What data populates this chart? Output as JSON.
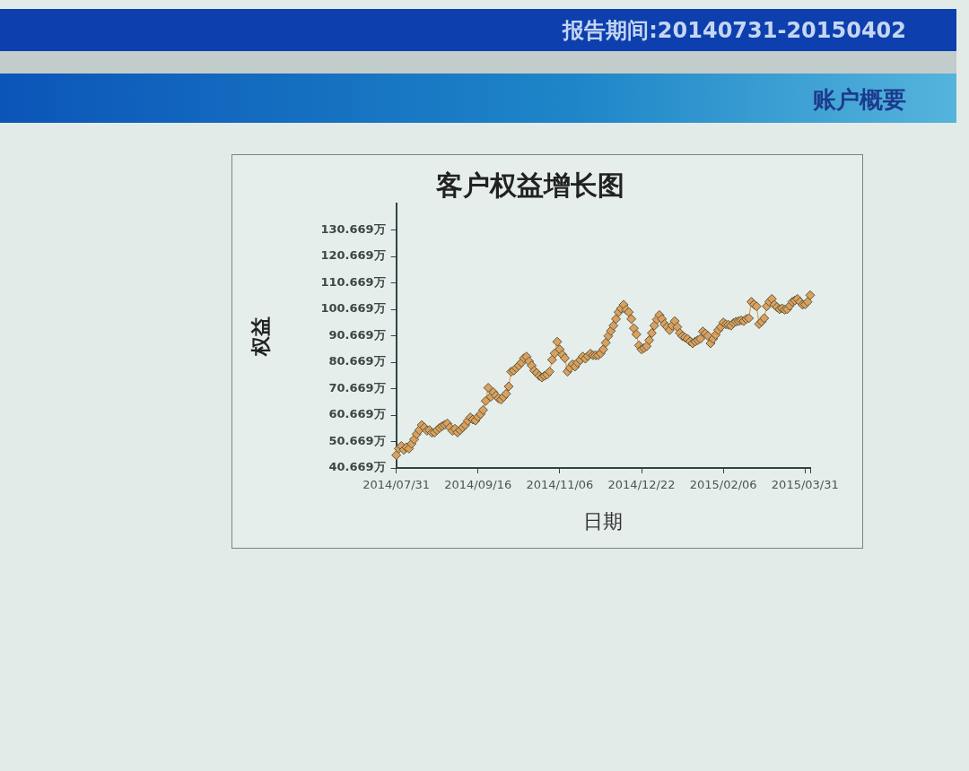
{
  "chart_data": {
    "type": "line",
    "title": "客户权益增长图",
    "xlabel": "日期",
    "ylabel": "权益",
    "annotations": [
      "报告期间:20140731-20150402",
      "账户概要"
    ],
    "categories": [
      "2014/07/31",
      null,
      null,
      null,
      null,
      null,
      null,
      null,
      null,
      null,
      null,
      null,
      null,
      null,
      null,
      null,
      null,
      null,
      null,
      null,
      null,
      null,
      null,
      null,
      null,
      null,
      null,
      null,
      null,
      null,
      null,
      null,
      "2014/09/16",
      null,
      null,
      null,
      null,
      null,
      null,
      null,
      null,
      null,
      null,
      null,
      null,
      null,
      null,
      null,
      null,
      null,
      null,
      null,
      null,
      null,
      null,
      null,
      null,
      null,
      null,
      null,
      null,
      null,
      null,
      null,
      "2014/11/06",
      null,
      null,
      null,
      null,
      null,
      null,
      null,
      null,
      null,
      null,
      null,
      null,
      null,
      null,
      null,
      null,
      null,
      null,
      null,
      null,
      null,
      null,
      null,
      null,
      null,
      null,
      null,
      null,
      null,
      null,
      null,
      "2014/12/22",
      null,
      null,
      null,
      null,
      null,
      null,
      null,
      null,
      null,
      null,
      null,
      null,
      null,
      null,
      null,
      null,
      null,
      null,
      null,
      null,
      null,
      null,
      null,
      null,
      null,
      null,
      null,
      null,
      null,
      null,
      null,
      "2015/02/06",
      null,
      null,
      null,
      null,
      null,
      null,
      null,
      null,
      null,
      null,
      null,
      null,
      null,
      null,
      null,
      null,
      null,
      null,
      null,
      null,
      null,
      null,
      null,
      null,
      null,
      null,
      null,
      null,
      null,
      null,
      null,
      "2015/03/31",
      null,
      null
    ],
    "values": [
      45.5,
      48,
      49,
      47.5,
      48.5,
      48,
      49.8,
      51.5,
      53.5,
      55,
      56.9,
      56,
      54.8,
      55,
      54,
      54.1,
      55,
      55.8,
      56.5,
      57,
      57.5,
      56,
      54.7,
      55.5,
      54.1,
      55,
      56,
      56.9,
      58.5,
      59.8,
      59,
      58.6,
      60,
      61,
      62.6,
      66,
      71,
      67.6,
      69.3,
      68,
      67,
      66.5,
      67.5,
      68.7,
      71.5,
      77.1,
      77.5,
      78.5,
      79.4,
      80.5,
      82.2,
      82.8,
      81,
      79.4,
      77.5,
      76.6,
      75.5,
      74.9,
      75.5,
      76,
      77.1,
      81.6,
      84,
      88.4,
      85.5,
      83.5,
      82.2,
      77.1,
      78.5,
      79.9,
      79,
      80.5,
      81.5,
      82.8,
      82,
      83,
      83.9,
      83.3,
      83.3,
      83.3,
      84,
      85.5,
      88,
      90.6,
      92.5,
      94.5,
      97,
      99.6,
      101,
      102.4,
      100.5,
      99.6,
      97,
      93.5,
      91.2,
      87,
      85.5,
      86,
      86.7,
      89,
      91.7,
      94.5,
      96.8,
      98.5,
      97,
      95.1,
      94,
      92.8,
      94.5,
      96.2,
      94,
      91.7,
      90.5,
      90,
      89.5,
      88.5,
      87.8,
      88.5,
      89,
      89.5,
      92.3,
      91.5,
      90.6,
      87.8,
      89.5,
      91,
      92.8,
      94,
      95.7,
      95,
      94.8,
      94.5,
      95.5,
      96,
      96.2,
      96.5,
      96.2,
      97,
      97.3,
      103.5,
      102.5,
      101.8,
      95.1,
      96,
      97.3,
      101.8,
      103.5,
      104.6,
      102.4,
      101.5,
      100.7,
      101,
      100.5,
      100.7,
      102,
      103.5,
      104,
      104.6,
      103.5,
      102.4,
      102.5,
      103.5,
      106
    ],
    "color": "#dba060",
    "marker": "diamond",
    "ylim": [
      40.669,
      140.669
    ],
    "yticks": [
      {
        "value": 40.669,
        "label": "40.669万"
      },
      {
        "value": 50.669,
        "label": "50.669万"
      },
      {
        "value": 60.669,
        "label": "60.669万"
      },
      {
        "value": 70.669,
        "label": "70.669万"
      },
      {
        "value": 80.669,
        "label": "80.669万"
      },
      {
        "value": 90.669,
        "label": "90.669万"
      },
      {
        "value": 100.669,
        "label": "100.669万"
      },
      {
        "value": 110.669,
        "label": "110.669万"
      },
      {
        "value": 120.669,
        "label": "120.669万"
      },
      {
        "value": 130.669,
        "label": "130.669万"
      }
    ]
  }
}
